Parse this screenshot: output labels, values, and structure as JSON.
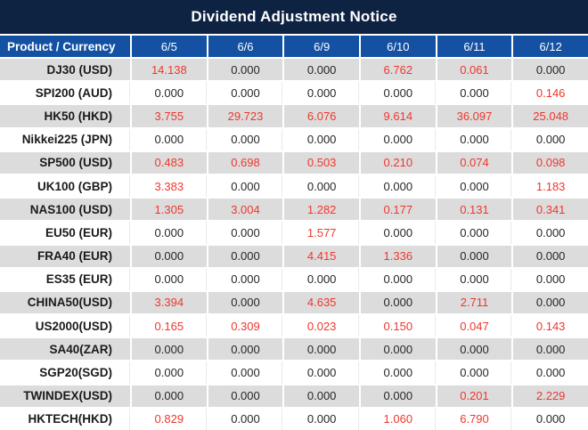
{
  "title": "Dividend Adjustment Notice",
  "colors": {
    "title_bg": "#0e2342",
    "header_bg": "#1451a2",
    "alt_row_bg": "#dcdcdc",
    "highlight_red": "#ee372d",
    "text_dark": "#262626"
  },
  "table": {
    "header_product": "Product / Currency",
    "dates": [
      "6/5",
      "6/6",
      "6/9",
      "6/10",
      "6/11",
      "6/12"
    ],
    "rows": [
      {
        "product": "DJ30 (USD)",
        "values": [
          "14.138",
          "0.000",
          "0.000",
          "6.762",
          "0.061",
          "0.000"
        ],
        "red": [
          true,
          false,
          false,
          true,
          true,
          false
        ]
      },
      {
        "product": "SPI200 (AUD)",
        "values": [
          "0.000",
          "0.000",
          "0.000",
          "0.000",
          "0.000",
          "0.146"
        ],
        "red": [
          false,
          false,
          false,
          false,
          false,
          true
        ]
      },
      {
        "product": "HK50 (HKD)",
        "values": [
          "3.755",
          "29.723",
          "6.076",
          "9.614",
          "36.097",
          "25.048"
        ],
        "red": [
          true,
          true,
          true,
          true,
          true,
          true
        ]
      },
      {
        "product": "Nikkei225 (JPN)",
        "values": [
          "0.000",
          "0.000",
          "0.000",
          "0.000",
          "0.000",
          "0.000"
        ],
        "red": [
          false,
          false,
          false,
          false,
          false,
          false
        ]
      },
      {
        "product": "SP500 (USD)",
        "values": [
          "0.483",
          "0.698",
          "0.503",
          "0.210",
          "0.074",
          "0.098"
        ],
        "red": [
          true,
          true,
          true,
          true,
          true,
          true
        ]
      },
      {
        "product": "UK100 (GBP)",
        "values": [
          "3.383",
          "0.000",
          "0.000",
          "0.000",
          "0.000",
          "1.183"
        ],
        "red": [
          true,
          false,
          false,
          false,
          false,
          true
        ]
      },
      {
        "product": "NAS100 (USD)",
        "values": [
          "1.305",
          "3.004",
          "1.282",
          "0.177",
          "0.131",
          "0.341"
        ],
        "red": [
          true,
          true,
          true,
          true,
          true,
          true
        ]
      },
      {
        "product": "EU50 (EUR)",
        "values": [
          "0.000",
          "0.000",
          "1.577",
          "0.000",
          "0.000",
          "0.000"
        ],
        "red": [
          false,
          false,
          true,
          false,
          false,
          false
        ]
      },
      {
        "product": "FRA40 (EUR)",
        "values": [
          "0.000",
          "0.000",
          "4.415",
          "1.336",
          "0.000",
          "0.000"
        ],
        "red": [
          false,
          false,
          true,
          true,
          false,
          false
        ]
      },
      {
        "product": "ES35 (EUR)",
        "values": [
          "0.000",
          "0.000",
          "0.000",
          "0.000",
          "0.000",
          "0.000"
        ],
        "red": [
          false,
          false,
          false,
          false,
          false,
          false
        ]
      },
      {
        "product": "CHINA50(USD)",
        "values": [
          "3.394",
          "0.000",
          "4.635",
          "0.000",
          "2.711",
          "0.000"
        ],
        "red": [
          true,
          false,
          true,
          false,
          true,
          false
        ]
      },
      {
        "product": "US2000(USD)",
        "values": [
          "0.165",
          "0.309",
          "0.023",
          "0.150",
          "0.047",
          "0.143"
        ],
        "red": [
          true,
          true,
          true,
          true,
          true,
          true
        ]
      },
      {
        "product": "SA40(ZAR)",
        "values": [
          "0.000",
          "0.000",
          "0.000",
          "0.000",
          "0.000",
          "0.000"
        ],
        "red": [
          false,
          false,
          false,
          false,
          false,
          false
        ]
      },
      {
        "product": "SGP20(SGD)",
        "values": [
          "0.000",
          "0.000",
          "0.000",
          "0.000",
          "0.000",
          "0.000"
        ],
        "red": [
          false,
          false,
          false,
          false,
          false,
          false
        ]
      },
      {
        "product": "TWINDEX(USD)",
        "values": [
          "0.000",
          "0.000",
          "0.000",
          "0.000",
          "0.201",
          "2.229"
        ],
        "red": [
          false,
          false,
          false,
          false,
          true,
          true
        ]
      },
      {
        "product": "HKTECH(HKD)",
        "values": [
          "0.829",
          "0.000",
          "0.000",
          "1.060",
          "6.790",
          "0.000"
        ],
        "red": [
          true,
          false,
          false,
          true,
          true,
          false
        ]
      }
    ]
  },
  "chart_data": {
    "type": "table",
    "title": "Dividend Adjustment Notice",
    "categories": [
      "6/5",
      "6/6",
      "6/9",
      "6/10",
      "6/11",
      "6/12"
    ],
    "row_header": "Product / Currency",
    "series": [
      {
        "name": "DJ30 (USD)",
        "values": [
          14.138,
          0.0,
          0.0,
          6.762,
          0.061,
          0.0
        ]
      },
      {
        "name": "SPI200 (AUD)",
        "values": [
          0.0,
          0.0,
          0.0,
          0.0,
          0.0,
          0.146
        ]
      },
      {
        "name": "HK50 (HKD)",
        "values": [
          3.755,
          29.723,
          6.076,
          9.614,
          36.097,
          25.048
        ]
      },
      {
        "name": "Nikkei225 (JPN)",
        "values": [
          0.0,
          0.0,
          0.0,
          0.0,
          0.0,
          0.0
        ]
      },
      {
        "name": "SP500 (USD)",
        "values": [
          0.483,
          0.698,
          0.503,
          0.21,
          0.074,
          0.098
        ]
      },
      {
        "name": "UK100 (GBP)",
        "values": [
          3.383,
          0.0,
          0.0,
          0.0,
          0.0,
          1.183
        ]
      },
      {
        "name": "NAS100 (USD)",
        "values": [
          1.305,
          3.004,
          1.282,
          0.177,
          0.131,
          0.341
        ]
      },
      {
        "name": "EU50 (EUR)",
        "values": [
          0.0,
          0.0,
          1.577,
          0.0,
          0.0,
          0.0
        ]
      },
      {
        "name": "FRA40 (EUR)",
        "values": [
          0.0,
          0.0,
          4.415,
          1.336,
          0.0,
          0.0
        ]
      },
      {
        "name": "ES35 (EUR)",
        "values": [
          0.0,
          0.0,
          0.0,
          0.0,
          0.0,
          0.0
        ]
      },
      {
        "name": "CHINA50(USD)",
        "values": [
          3.394,
          0.0,
          4.635,
          0.0,
          2.711,
          0.0
        ]
      },
      {
        "name": "US2000(USD)",
        "values": [
          0.165,
          0.309,
          0.023,
          0.15,
          0.047,
          0.143
        ]
      },
      {
        "name": "SA40(ZAR)",
        "values": [
          0.0,
          0.0,
          0.0,
          0.0,
          0.0,
          0.0
        ]
      },
      {
        "name": "SGP20(SGD)",
        "values": [
          0.0,
          0.0,
          0.0,
          0.0,
          0.0,
          0.0
        ]
      },
      {
        "name": "TWINDEX(USD)",
        "values": [
          0.0,
          0.0,
          0.0,
          0.0,
          0.201,
          2.229
        ]
      },
      {
        "name": "HKTECH(HKD)",
        "values": [
          0.829,
          0.0,
          0.0,
          1.06,
          6.79,
          0.0
        ]
      }
    ],
    "notes": "Non-zero dividend adjustments rendered in red; zeros in black. Alternating gray/white rows."
  }
}
